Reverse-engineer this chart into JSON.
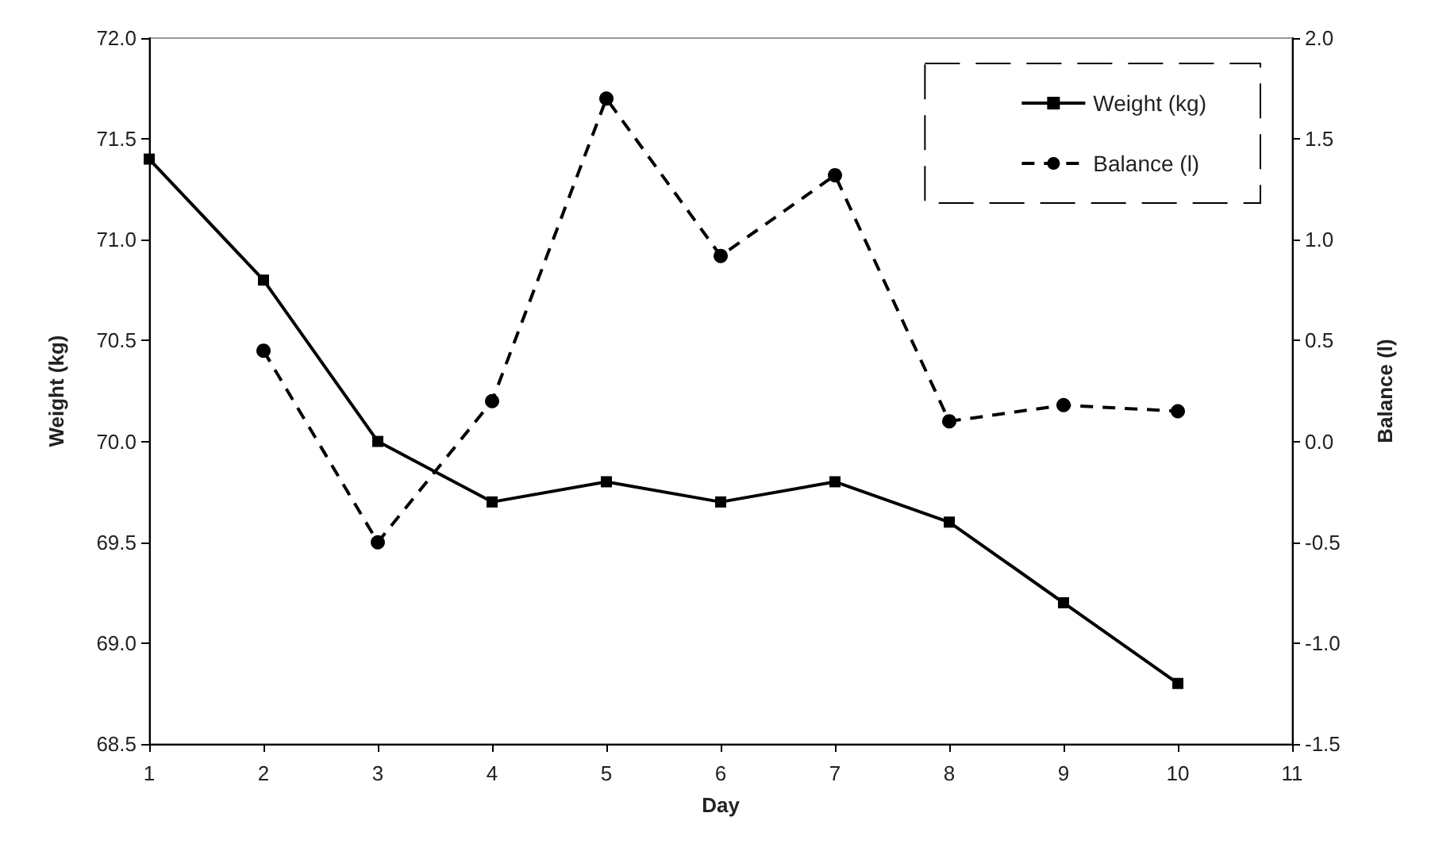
{
  "chart_data": {
    "type": "line",
    "xlabel": "Day",
    "ylabel": "Weight (kg)",
    "y2label": "Balance (l)",
    "x": [
      1,
      2,
      3,
      4,
      5,
      6,
      7,
      8,
      9,
      10
    ],
    "series": [
      {
        "name": "Weight (kg)",
        "color": "#000000",
        "marker": "square",
        "line_style": "solid",
        "values": [
          71.4,
          70.8,
          70.0,
          69.7,
          69.8,
          69.7,
          69.8,
          69.6,
          69.2,
          68.8
        ]
      },
      {
        "name": "Balance (l)",
        "color": "#000000",
        "marker": "circle",
        "line_style": "dashed",
        "axis": "y2",
        "x": [
          2,
          3,
          4,
          5,
          6,
          7,
          8,
          9,
          10
        ],
        "values": [
          0.45,
          -0.5,
          0.2,
          1.7,
          0.92,
          1.32,
          0.1,
          0.18,
          0.15
        ]
      }
    ],
    "xlim": [
      1,
      11
    ],
    "xticks": [
      1,
      2,
      3,
      4,
      5,
      6,
      7,
      8,
      9,
      10,
      11
    ],
    "ylim": [
      68.5,
      72.0
    ],
    "yticks": [
      {
        "value": 68.5,
        "label": "68.5"
      },
      {
        "value": 69,
        "label": "69.0"
      },
      {
        "value": 69.5,
        "label": "69.5"
      },
      {
        "value": 70,
        "label": "70.0"
      },
      {
        "value": 70.5,
        "label": "70.5"
      },
      {
        "value": 71,
        "label": "71.0"
      },
      {
        "value": 71.5,
        "label": "71.5"
      },
      {
        "value": 72,
        "label": "72.0"
      }
    ],
    "y2lim": [
      -1.5,
      2.0
    ],
    "y2ticks": [
      {
        "value": -1.5,
        "label": "-1.5"
      },
      {
        "value": -1,
        "label": "-1.0"
      },
      {
        "value": -0.5,
        "label": "-0.5"
      },
      {
        "value": 0,
        "label": "0.0"
      },
      {
        "value": 0.5,
        "label": "0.5"
      },
      {
        "value": 1,
        "label": "1.0"
      },
      {
        "value": 1.5,
        "label": "1.5"
      },
      {
        "value": 2,
        "label": "2.0"
      }
    ],
    "grid": false,
    "legend": "top right"
  }
}
